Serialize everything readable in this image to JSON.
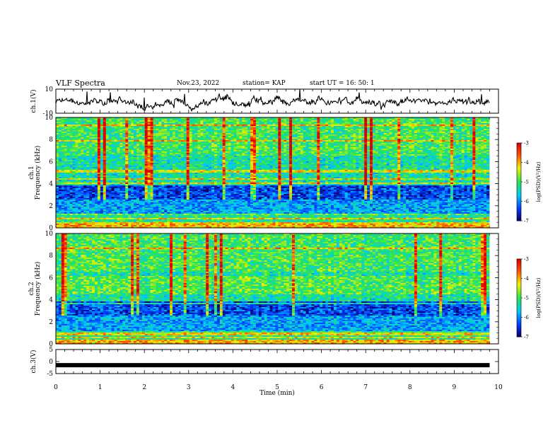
{
  "header": {
    "title": "VLF Spectra",
    "date": "Nov.23, 2022",
    "station": "station= KAP",
    "start": "start  UT =   16: 50: 1"
  },
  "chart_data": [
    {
      "type": "line",
      "ylabel": "ch.1(V)",
      "ylim": [
        -10,
        10
      ],
      "y_ticks": [
        "10",
        "-10"
      ],
      "x_unit": "min",
      "xlim": [
        0,
        10
      ],
      "signal": {
        "baseline": 0,
        "amplitude_typical": 3,
        "x_end": 9.8,
        "color": "#000000"
      }
    },
    {
      "type": "heatmap",
      "ylabel": "Frequency (kHz)",
      "channel_label": "ch.1",
      "ylim": [
        0,
        10
      ],
      "y_ticks": [
        "0",
        "2",
        "4",
        "6",
        "8",
        "10"
      ],
      "xlim": [
        0,
        10
      ],
      "x_end": 9.8,
      "colorbar": {
        "label": "log(PSD)(V²/Hz)",
        "range": [
          -7,
          -3
        ],
        "ticks": [
          "-3",
          "-4",
          "-5",
          "-6",
          "-7"
        ]
      }
    },
    {
      "type": "heatmap",
      "ylabel": "Frequency (kHz)",
      "channel_label": "ch.2",
      "ylim": [
        0,
        10
      ],
      "y_ticks": [
        "0",
        "2",
        "4",
        "6",
        "8",
        "10"
      ],
      "xlim": [
        0,
        10
      ],
      "x_end": 9.8,
      "colorbar": {
        "label": "log(PSD)(V²/Hz)",
        "range": [
          -7,
          -3
        ],
        "ticks": [
          "-3",
          "-4",
          "-5",
          "-6",
          "-7"
        ]
      }
    },
    {
      "type": "line",
      "ylabel": "ch.3(V)",
      "ylim": [
        -5,
        5
      ],
      "y_ticks": [
        "5",
        "0",
        "-5"
      ],
      "xlim": [
        0,
        10
      ],
      "signal": {
        "baseline": -1.5,
        "x_end": 9.8,
        "color": "#000000"
      }
    }
  ],
  "x_axis": {
    "label": "Time (min)",
    "ticks": [
      "0",
      "1",
      "2",
      "3",
      "4",
      "5",
      "6",
      "7",
      "8",
      "9",
      "10"
    ]
  }
}
